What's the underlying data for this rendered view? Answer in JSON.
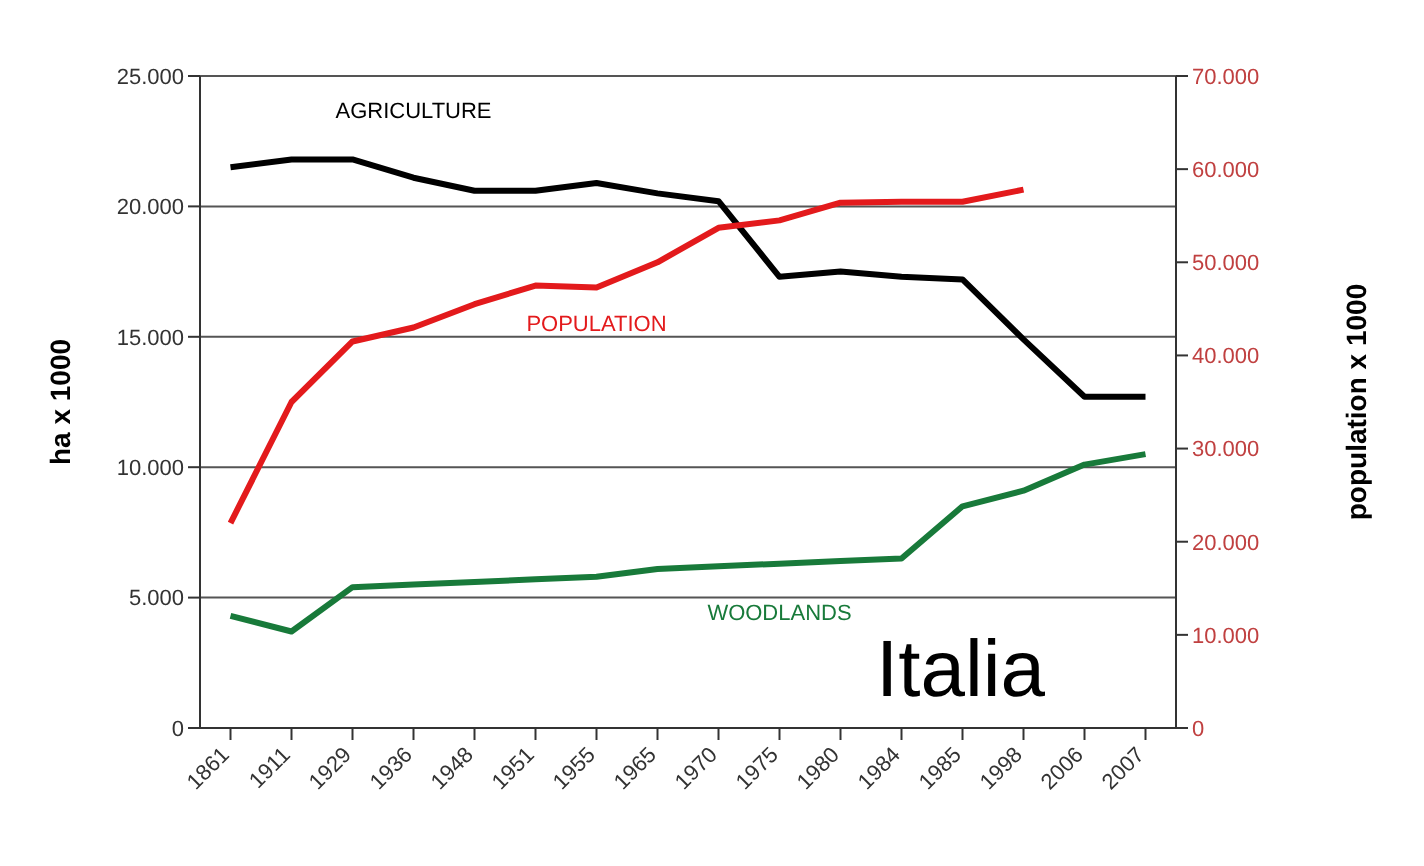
{
  "chart_data": {
    "type": "line",
    "ylabel": "ha x 1000",
    "y2label": "population x 1000",
    "categories": [
      "1861",
      "1911",
      "1929",
      "1936",
      "1948",
      "1951",
      "1955",
      "1965",
      "1970",
      "1975",
      "1980",
      "1984",
      "1985",
      "1998",
      "2006",
      "2007"
    ],
    "series": [
      {
        "name": "AGRICULTURE",
        "color": "#000000",
        "values": [
          21500,
          21800,
          21800,
          21100,
          20600,
          20600,
          20900,
          20500,
          20200,
          17300,
          17500,
          17300,
          17200,
          14900,
          12700,
          12700
        ]
      },
      {
        "name": "POPULATION",
        "color": "#e31a1c",
        "axis": "y2",
        "values": [
          22000,
          35000,
          41500,
          43000,
          45500,
          47500,
          47300,
          50000,
          53700,
          54500,
          56400,
          56500,
          56500,
          57800,
          null,
          null
        ]
      },
      {
        "name": "WOODLANDS",
        "color": "#187a3a",
        "values": [
          4300,
          3700,
          5400,
          5500,
          5600,
          5700,
          5800,
          6100,
          6200,
          6300,
          6400,
          6500,
          8500,
          9100,
          10100,
          10500
        ]
      }
    ],
    "ylim": [
      0,
      25000
    ],
    "yticks": [
      {
        "value": 0,
        "label": "0"
      },
      {
        "value": 5000,
        "label": "5.000"
      },
      {
        "value": 10000,
        "label": "10.000"
      },
      {
        "value": 15000,
        "label": "15.000"
      },
      {
        "value": 20000,
        "label": "20.000"
      },
      {
        "value": 25000,
        "label": "25.000"
      }
    ],
    "y2lim": [
      0,
      70000
    ],
    "y2ticks": [
      {
        "value": 0,
        "label": "0"
      },
      {
        "value": 10000,
        "label": "10.000"
      },
      {
        "value": 20000,
        "label": "20.000"
      },
      {
        "value": 30000,
        "label": "30.000"
      },
      {
        "value": 40000,
        "label": "40.000"
      },
      {
        "value": 50000,
        "label": "50.000"
      },
      {
        "value": 60000,
        "label": "60.000"
      },
      {
        "value": 70000,
        "label": "70.000"
      }
    ],
    "grid": "y",
    "legend": false,
    "marker": "none",
    "line_style": "solid",
    "annotations": [
      "Italia"
    ]
  }
}
